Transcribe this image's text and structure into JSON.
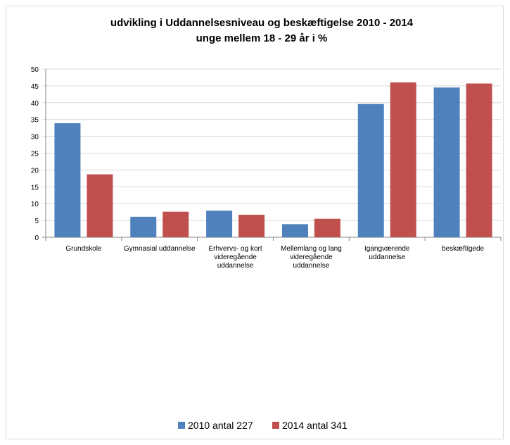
{
  "chart_data": {
    "type": "bar",
    "title": "udvikling i Uddannelsesniveau og beskæftigelse  2010 - 2014",
    "subtitle": "unge mellem 18 - 29 år i %",
    "categories": [
      [
        "Grundskole"
      ],
      [
        "Gymnasial uddannelse"
      ],
      [
        "Erhvervs- og kort",
        "videregående",
        "uddannelse"
      ],
      [
        "Mellemlang og lang",
        "videregående",
        "uddannelse"
      ],
      [
        "Igangværende",
        "uddannelse"
      ],
      [
        "beskæftigede"
      ]
    ],
    "series": [
      {
        "name": "2010 antal 227",
        "color": "#4f81bd",
        "values": [
          33.9,
          6.1,
          7.9,
          3.9,
          39.6,
          44.5
        ]
      },
      {
        "name": "2014 antal 341",
        "color": "#c0504d",
        "values": [
          18.7,
          7.6,
          6.7,
          5.5,
          46.0,
          45.7
        ]
      }
    ],
    "ylim": [
      0,
      50
    ],
    "yticks": [
      0,
      5,
      10,
      15,
      20,
      25,
      30,
      35,
      40,
      45,
      50
    ],
    "grid": true,
    "legend_position": "bottom"
  }
}
